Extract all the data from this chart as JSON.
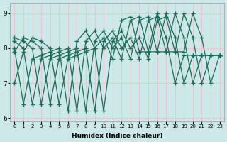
{
  "series": [
    [
      7.0,
      7.9,
      8.3,
      8.2,
      8.0,
      6.4,
      7.7,
      7.8,
      7.9,
      8.0,
      6.2,
      8.2,
      8.5,
      8.0,
      8.3,
      7.7,
      8.8,
      8.9,
      7.9,
      7.9,
      9.0,
      8.3,
      7.0,
      7.8
    ],
    [
      7.9,
      8.3,
      8.2,
      8.0,
      6.4,
      7.7,
      7.8,
      7.9,
      8.0,
      6.2,
      8.2,
      8.5,
      8.0,
      8.3,
      7.7,
      8.8,
      8.9,
      7.9,
      7.9,
      9.0,
      8.3,
      7.0,
      7.8,
      7.8
    ],
    [
      8.3,
      8.2,
      8.0,
      6.4,
      7.7,
      7.8,
      7.9,
      8.0,
      6.2,
      8.2,
      8.5,
      8.0,
      8.3,
      7.7,
      8.8,
      8.9,
      7.9,
      7.9,
      9.0,
      8.3,
      7.0,
      7.8,
      7.8,
      7.8
    ],
    [
      8.2,
      8.0,
      6.4,
      7.7,
      7.8,
      7.9,
      8.0,
      6.2,
      8.2,
      8.5,
      8.0,
      8.3,
      7.7,
      8.8,
      8.9,
      7.9,
      7.9,
      9.0,
      8.3,
      7.0,
      7.8,
      7.8,
      7.8,
      7.8
    ],
    [
      8.0,
      6.4,
      7.7,
      7.8,
      7.9,
      8.0,
      6.2,
      8.2,
      8.5,
      8.0,
      8.3,
      7.7,
      8.8,
      8.9,
      7.9,
      7.9,
      9.0,
      8.3,
      7.0,
      7.8,
      7.8,
      7.8,
      7.8,
      7.8
    ]
  ],
  "x": [
    0,
    1,
    2,
    3,
    4,
    5,
    6,
    7,
    8,
    9,
    10,
    11,
    12,
    13,
    14,
    15,
    16,
    17,
    18,
    19,
    20,
    21,
    22,
    23
  ],
  "xlabel": "Humidex (Indice chaleur)",
  "bg_color": "#cce8e8",
  "line_color": "#1a6b5a",
  "grid_color": "#e8c8c8",
  "ylim": [
    5.9,
    9.3
  ],
  "xlim": [
    -0.5,
    23.5
  ],
  "yticks": [
    6,
    7,
    8,
    9
  ],
  "xticks": [
    0,
    1,
    2,
    3,
    4,
    5,
    6,
    7,
    8,
    9,
    10,
    11,
    12,
    13,
    14,
    15,
    16,
    17,
    18,
    19,
    20,
    21,
    22,
    23
  ],
  "xtick_labels": [
    "0",
    "1",
    "2",
    "3",
    "4",
    "5",
    "6",
    "7",
    "8",
    "9",
    "10",
    "11",
    "12",
    "13",
    "14",
    "15",
    "16",
    "17",
    "18",
    "19",
    "20",
    "21",
    "22",
    "23"
  ]
}
